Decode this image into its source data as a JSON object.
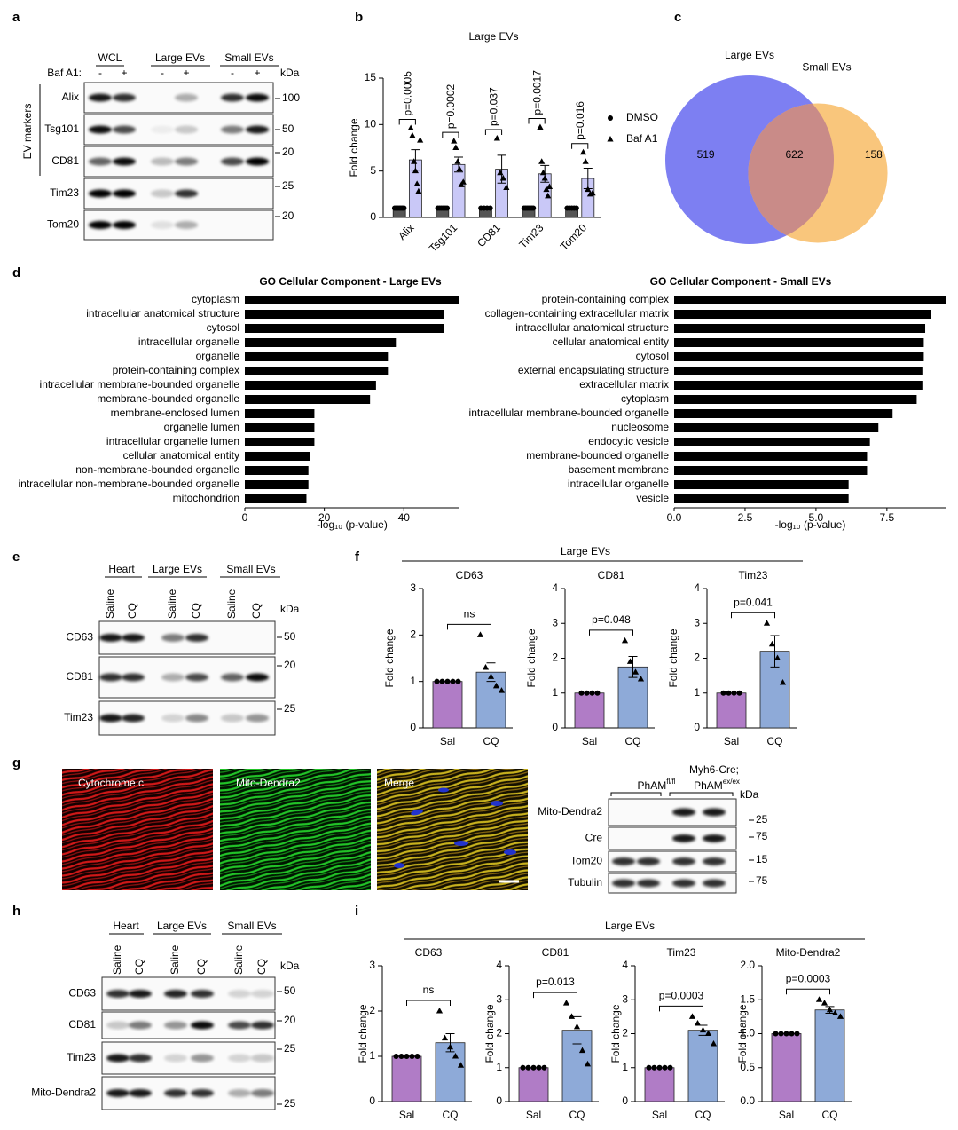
{
  "panel_labels": [
    "a",
    "b",
    "c",
    "d",
    "e",
    "f",
    "g",
    "h",
    "i"
  ],
  "section_titles": [
    "Large EVs",
    "Large EVs"
  ],
  "images": [
    "Cytochrome c",
    "Mito-Dendra2",
    "Merge"
  ],
  "blots": {
    "a": {
      "groups": [
        "WCL",
        "Large EVs",
        "Small EVs"
      ],
      "treatment": "Baf A1:",
      "lanes": [
        "-",
        "+",
        "-",
        "+",
        "-",
        "+"
      ],
      "kda": "kDa",
      "side_label": "EV markers",
      "rows": [
        {
          "name": "Alix",
          "kda": 100
        },
        {
          "name": "Tsg101",
          "kda": 50
        },
        {
          "name": "CD81",
          "kda": 20
        },
        {
          "name": "Tim23",
          "kda": 25
        },
        {
          "name": "Tom20",
          "kda": 20
        }
      ]
    },
    "e": {
      "groups": [
        "Heart",
        "Large EVs",
        "Small EVs"
      ],
      "lanes": [
        "Saline",
        "CQ",
        "Saline",
        "CQ",
        "Saline",
        "CQ"
      ],
      "kda": "kDa",
      "rows": [
        {
          "name": "CD63",
          "kda": 50
        },
        {
          "name": "CD81",
          "kda": 20
        },
        {
          "name": "Tim23",
          "kda": 25
        }
      ]
    },
    "g": {
      "groups": [
        {
          "text": "PhAM",
          "sup": "fl/fl"
        },
        {
          "prefix": "Myh6-Cre;",
          "text": "PhAM",
          "sup": "ex/ex"
        }
      ],
      "kda": "kDa",
      "rows": [
        {
          "name": "Mito-Dendra2",
          "kda": 25
        },
        {
          "name": "Cre",
          "kda": 75
        },
        {
          "name": "Tom20",
          "kda": 15
        },
        {
          "name": "Tubulin",
          "kda": 75
        }
      ]
    },
    "h": {
      "groups": [
        "Heart",
        "Large EVs",
        "Small EVs"
      ],
      "lanes": [
        "Saline",
        "CQ",
        "Saline",
        "CQ",
        "Saline",
        "CQ"
      ],
      "kda": "kDa",
      "rows": [
        {
          "name": "CD63",
          "kda": 50
        },
        {
          "name": "CD81",
          "kda": 20
        },
        {
          "name": "Tim23",
          "kda": 25
        },
        {
          "name": "Mito-Dendra2",
          "kda": 25
        }
      ]
    }
  },
  "chart_data": [
    {
      "type": "bar",
      "title": "Large EVs",
      "ylabel": "Fold change",
      "categories": [
        "Alix",
        "Tsg101",
        "CD81",
        "Tim23",
        "Tom20"
      ],
      "series": [
        {
          "name": "DMSO",
          "color": "#555555",
          "marker": "circle",
          "values": [
            1,
            1,
            1,
            1,
            1
          ],
          "errors": [
            null,
            null,
            null,
            null,
            null
          ],
          "points": [
            [
              1,
              1,
              1,
              1,
              1,
              1,
              1
            ],
            [
              1,
              1,
              1,
              1,
              1,
              1
            ],
            [
              1,
              1,
              1,
              1
            ],
            [
              1,
              1,
              1,
              1,
              1,
              1,
              1
            ],
            [
              1,
              1,
              1,
              1,
              1
            ]
          ]
        },
        {
          "name": "Baf A1",
          "color": "#c9c8f7",
          "marker": "triangle",
          "values": [
            6.2,
            5.7,
            5.2,
            4.7,
            4.2
          ],
          "errors": [
            1.1,
            0.8,
            1.5,
            0.9,
            1.1
          ],
          "points": [
            [
              9.6,
              8.8,
              6.0,
              5.0,
              3.6,
              2.8,
              8.3
            ],
            [
              8.2,
              7.5,
              6.0,
              5.2,
              3.5,
              3.8
            ],
            [
              8.5,
              4.8,
              4.2,
              3.2
            ],
            [
              9.7,
              6.0,
              4.8,
              4.2,
              3.0,
              2.3,
              3.3
            ],
            [
              7.0,
              6.0,
              3.0,
              2.5,
              2.6
            ]
          ]
        }
      ],
      "ylim": [
        0,
        15
      ],
      "yticks": [
        0,
        5,
        10,
        15
      ],
      "annotations": [
        "p=0.0005",
        "p=0.0002",
        "p=0.037",
        "p=0.0017",
        "p=0.016"
      ],
      "legend": "right"
    },
    {
      "type": "venn",
      "sets": [
        {
          "name": "Large EVs",
          "color": "#7d7ff2"
        },
        {
          "name": "Small EVs",
          "color": "#f9c67c"
        }
      ],
      "overlap_color": "#c98b88",
      "values": [
        519,
        622,
        158
      ]
    },
    {
      "type": "hbar",
      "title": "GO Cellular Component - Large EVs",
      "xlabel": "-log₁₀ (p-value)",
      "categories": [
        "cytoplasm",
        "intracellular anatomical structure",
        "cytosol",
        "intracellular organelle",
        "organelle",
        "protein-containing complex",
        "intracellular membrane-bounded organelle",
        "membrane-bounded organelle",
        "membrane-enclosed lumen",
        "organelle lumen",
        "intracellular organelle lumen",
        "cellular anatomical entity",
        "non-membrane-bounded organelle",
        "intracellular non-membrane-bounded organelle",
        "mitochondrion"
      ],
      "values": [
        54,
        50,
        50,
        38,
        36,
        36,
        33,
        31.5,
        17.5,
        17.5,
        17.5,
        16.5,
        16,
        16,
        15.5
      ],
      "color": "#000000",
      "xlim": [
        0,
        54
      ],
      "xticks": [
        0,
        20,
        40
      ]
    },
    {
      "type": "hbar",
      "title": "GO Cellular Component - Small EVs",
      "xlabel": "-log₁₀ (p-value)",
      "categories": [
        "protein-containing complex",
        "collagen-containing extracellular matrix",
        "intracellular anatomical structure",
        "cellular anatomical entity",
        "cytosol",
        "external encapsulating structure",
        "extracellular matrix",
        "cytoplasm",
        "intracellular membrane-bounded organelle",
        "nucleosome",
        "endocytic vesicle",
        "membrane-bounded organelle",
        "basement membrane",
        "intracellular organelle",
        "vesicle"
      ],
      "values": [
        9.6,
        9.05,
        8.85,
        8.8,
        8.8,
        8.75,
        8.75,
        8.55,
        7.7,
        7.2,
        6.9,
        6.8,
        6.8,
        6.15,
        6.15
      ],
      "color": "#000000",
      "xlim": [
        0,
        9.6
      ],
      "xticks": [
        {
          "value": 0,
          "label": "0.0"
        },
        {
          "value": 2.5,
          "label": "2.5"
        },
        {
          "value": 5,
          "label": "5.0"
        },
        {
          "value": 7.5,
          "label": "7.5"
        }
      ]
    },
    {
      "type": "bar",
      "title": "CD63",
      "ylabel": "Fold change",
      "categories": [
        "Sal",
        "CQ"
      ],
      "series": [
        {
          "colors": [
            "#b07cc6",
            "#8eaad8"
          ],
          "markers": [
            "circle",
            "triangle"
          ],
          "values": [
            1,
            1.2
          ],
          "errors": [
            null,
            0.2
          ],
          "points": [
            [
              1,
              1,
              1,
              1,
              1
            ],
            [
              2.0,
              1.3,
              1.1,
              0.9,
              0.8
            ]
          ]
        }
      ],
      "ylim": [
        0,
        3
      ],
      "yticks": [
        0,
        1,
        2,
        3
      ],
      "annotation": "ns"
    },
    {
      "type": "bar",
      "title": "CD81",
      "ylabel": "Fold change",
      "categories": [
        "Sal",
        "CQ"
      ],
      "series": [
        {
          "colors": [
            "#b07cc6",
            "#8eaad8"
          ],
          "markers": [
            "circle",
            "triangle"
          ],
          "values": [
            1,
            1.75
          ],
          "errors": [
            null,
            0.3
          ],
          "points": [
            [
              1,
              1,
              1,
              1
            ],
            [
              2.5,
              1.9,
              1.6,
              1.4
            ]
          ]
        }
      ],
      "ylim": [
        0,
        4
      ],
      "yticks": [
        0,
        1,
        2,
        3,
        4
      ],
      "annotation": "p=0.048"
    },
    {
      "type": "bar",
      "title": "Tim23",
      "ylabel": "Fold change",
      "categories": [
        "Sal",
        "CQ"
      ],
      "series": [
        {
          "colors": [
            "#b07cc6",
            "#8eaad8"
          ],
          "markers": [
            "circle",
            "triangle"
          ],
          "values": [
            1,
            2.2
          ],
          "errors": [
            null,
            0.45
          ],
          "points": [
            [
              1,
              1,
              1,
              1
            ],
            [
              3.0,
              2.4,
              2.0,
              1.3
            ]
          ]
        }
      ],
      "ylim": [
        0,
        4
      ],
      "yticks": [
        0,
        1,
        2,
        3,
        4
      ],
      "annotation": "p=0.041"
    },
    {
      "type": "bar",
      "title": "CD63",
      "ylabel": "Fold change",
      "categories": [
        "Sal",
        "CQ"
      ],
      "series": [
        {
          "colors": [
            "#b07cc6",
            "#8eaad8"
          ],
          "markers": [
            "circle",
            "triangle"
          ],
          "values": [
            1,
            1.3
          ],
          "errors": [
            null,
            0.2
          ],
          "points": [
            [
              1,
              1,
              1,
              1,
              1
            ],
            [
              2.0,
              1.4,
              1.2,
              1.0,
              0.8
            ]
          ]
        }
      ],
      "ylim": [
        0,
        3
      ],
      "yticks": [
        0,
        1,
        2,
        3
      ],
      "annotation": "ns"
    },
    {
      "type": "bar",
      "title": "CD81",
      "ylabel": "Fold change",
      "categories": [
        "Sal",
        "CQ"
      ],
      "series": [
        {
          "colors": [
            "#b07cc6",
            "#8eaad8"
          ],
          "markers": [
            "circle",
            "triangle"
          ],
          "values": [
            1,
            2.1
          ],
          "errors": [
            null,
            0.4
          ],
          "points": [
            [
              1,
              1,
              1,
              1,
              1
            ],
            [
              2.9,
              2.5,
              2.2,
              1.5,
              1.1
            ]
          ]
        }
      ],
      "ylim": [
        0,
        4
      ],
      "yticks": [
        0,
        1,
        2,
        3,
        4
      ],
      "annotation": "p=0.013"
    },
    {
      "type": "bar",
      "title": "Tim23",
      "ylabel": "Fold change",
      "categories": [
        "Sal",
        "CQ"
      ],
      "series": [
        {
          "colors": [
            "#b07cc6",
            "#8eaad8"
          ],
          "markers": [
            "circle",
            "triangle"
          ],
          "values": [
            1,
            2.1
          ],
          "errors": [
            null,
            0.15
          ],
          "points": [
            [
              1,
              1,
              1,
              1,
              1
            ],
            [
              2.5,
              2.3,
              2.1,
              2.0,
              1.7
            ]
          ]
        }
      ],
      "ylim": [
        0,
        4
      ],
      "yticks": [
        0,
        1,
        2,
        3,
        4
      ],
      "annotation": "p=0.0003"
    },
    {
      "type": "bar",
      "title": "Mito-Dendra2",
      "ylabel": "Fold change",
      "categories": [
        "Sal",
        "CQ"
      ],
      "series": [
        {
          "colors": [
            "#b07cc6",
            "#8eaad8"
          ],
          "markers": [
            "circle",
            "triangle"
          ],
          "values": [
            1,
            1.35
          ],
          "errors": [
            null,
            0.05
          ],
          "points": [
            [
              1,
              1,
              1,
              1,
              1
            ],
            [
              1.5,
              1.45,
              1.35,
              1.3,
              1.25
            ]
          ]
        }
      ],
      "ylim": [
        0,
        2
      ],
      "yticks": [
        {
          "value": 0,
          "label": "0.0"
        },
        {
          "value": 0.5,
          "label": "0.5"
        },
        {
          "value": 1,
          "label": "1.0"
        },
        {
          "value": 1.5,
          "label": "1.5"
        },
        {
          "value": 2,
          "label": "2.0"
        }
      ],
      "annotation": "p=0.0003"
    }
  ]
}
